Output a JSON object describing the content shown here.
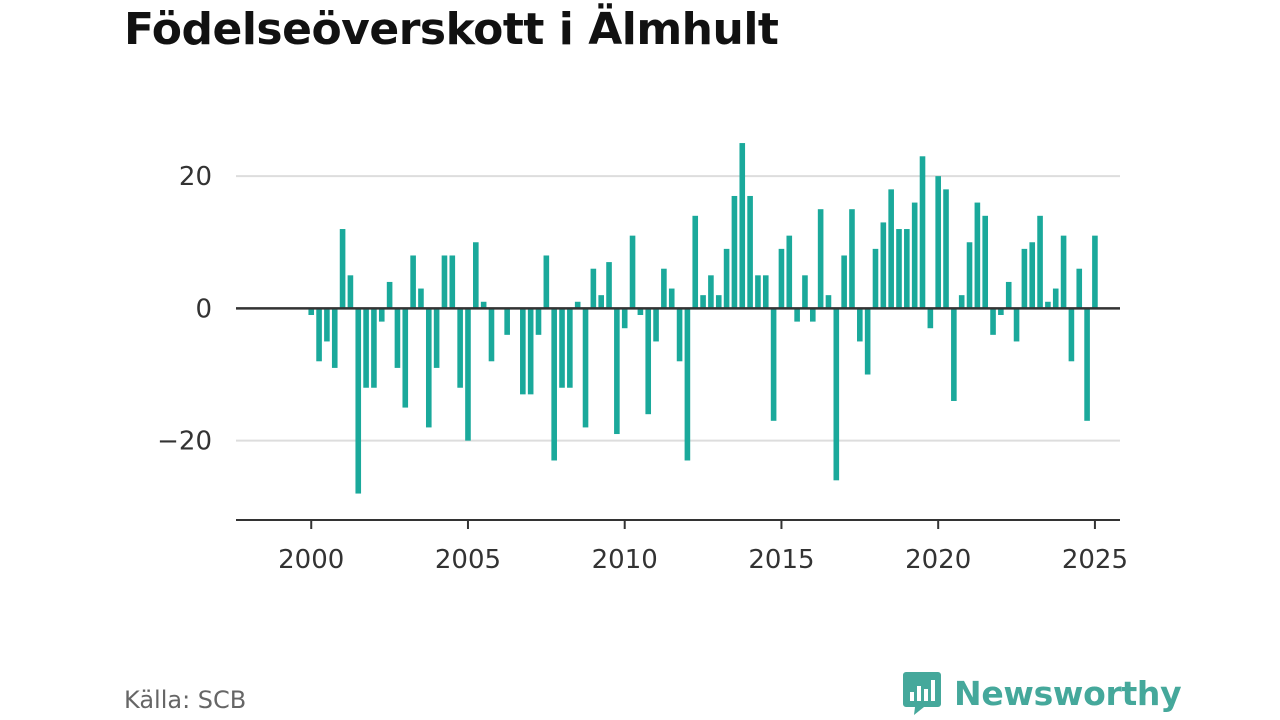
{
  "title": "Födelseöverskott i Älmhult",
  "source": "Källa: SCB",
  "brand": {
    "name": "Newsworthy",
    "icon": "newsworthy-logo-icon"
  },
  "colors": {
    "bar": "#1aa99b",
    "zero_line": "#333333",
    "grid": "#dddddd",
    "axis": "#333333",
    "brand": "#45a89b"
  },
  "chart_data": {
    "type": "bar",
    "title": "Födelseöverskott i Älmhult",
    "xlabel": "",
    "ylabel": "",
    "xlim": [
      1997.6,
      2025.8
    ],
    "ylim": [
      -32,
      30
    ],
    "x_ticks": [
      2000,
      2005,
      2010,
      2015,
      2020,
      2025
    ],
    "x_tick_labels": [
      "2000",
      "2005",
      "2010",
      "2015",
      "2020",
      "2025"
    ],
    "y_ticks": [
      20,
      0,
      -20
    ],
    "y_tick_labels": [
      "20",
      "0",
      "−20"
    ],
    "grid": true,
    "frequency": "quarterly",
    "start": "2000 Q1",
    "values": [
      -1,
      -8,
      -5,
      -9,
      12,
      5,
      -28,
      -12,
      -12,
      -2,
      4,
      -9,
      -15,
      8,
      3,
      -18,
      -9,
      8,
      8,
      -12,
      -20,
      10,
      1,
      -8,
      0,
      -4,
      0,
      -13,
      -13,
      -4,
      8,
      -23,
      -12,
      -12,
      1,
      -18,
      6,
      2,
      7,
      -19,
      -3,
      11,
      -1,
      -16,
      -5,
      6,
      3,
      -8,
      -23,
      14,
      2,
      5,
      2,
      9,
      17,
      25,
      17,
      5,
      5,
      -17,
      9,
      11,
      -2,
      5,
      -2,
      15,
      2,
      -26,
      8,
      15,
      -5,
      -10,
      9,
      13,
      18,
      12,
      12,
      16,
      23,
      -3,
      20,
      18,
      -14,
      2,
      10,
      16,
      14,
      -4,
      -1,
      4,
      -5,
      9,
      10,
      14,
      1,
      3,
      11,
      -8,
      6,
      -17,
      11
    ]
  }
}
